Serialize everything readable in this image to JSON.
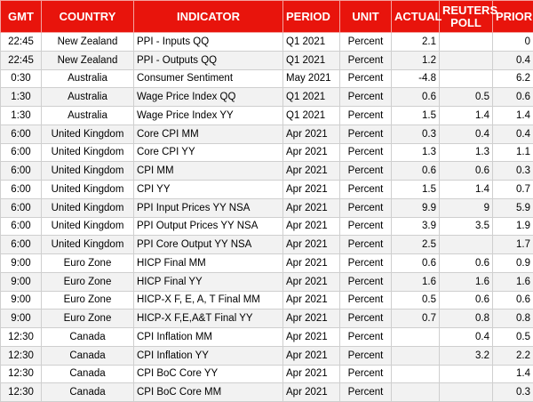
{
  "table": {
    "header": [
      "GMT",
      "COUNTRY",
      "INDICATOR",
      "PERIOD",
      "UNIT",
      "ACTUAL",
      "REUTERS POLL",
      "PRIOR"
    ],
    "rows": [
      [
        "22:45",
        "New Zealand",
        "PPI - Inputs QQ",
        "Q1 2021",
        "Percent",
        2.1,
        null,
        0
      ],
      [
        "22:45",
        "New Zealand",
        "PPI - Outputs QQ",
        "Q1 2021",
        "Percent",
        1.2,
        null,
        0.4
      ],
      [
        "0:30",
        "Australia",
        "Consumer Sentiment",
        "May 2021",
        "Percent",
        -4.8,
        null,
        6.2
      ],
      [
        "1:30",
        "Australia",
        "Wage Price Index QQ",
        "Q1 2021",
        "Percent",
        0.6,
        0.5,
        0.6
      ],
      [
        "1:30",
        "Australia",
        "Wage Price Index YY",
        "Q1 2021",
        "Percent",
        1.5,
        1.4,
        1.4
      ],
      [
        "6:00",
        "United Kingdom",
        "Core CPI MM",
        "Apr 2021",
        "Percent",
        0.3,
        0.4,
        0.4
      ],
      [
        "6:00",
        "United Kingdom",
        "Core CPI YY",
        "Apr 2021",
        "Percent",
        1.3,
        1.3,
        1.1
      ],
      [
        "6:00",
        "United Kingdom",
        "CPI MM",
        "Apr 2021",
        "Percent",
        0.6,
        0.6,
        0.3
      ],
      [
        "6:00",
        "United Kingdom",
        "CPI YY",
        "Apr 2021",
        "Percent",
        1.5,
        1.4,
        0.7
      ],
      [
        "6:00",
        "United Kingdom",
        "PPI Input Prices YY NSA",
        "Apr 2021",
        "Percent",
        9.9,
        9,
        5.9
      ],
      [
        "6:00",
        "United Kingdom",
        "PPI Output Prices YY NSA",
        "Apr 2021",
        "Percent",
        3.9,
        3.5,
        1.9
      ],
      [
        "6:00",
        "United Kingdom",
        "PPI Core Output YY NSA",
        "Apr 2021",
        "Percent",
        2.5,
        null,
        1.7
      ],
      [
        "9:00",
        "Euro Zone",
        "HICP Final MM",
        "Apr 2021",
        "Percent",
        0.6,
        0.6,
        0.9
      ],
      [
        "9:00",
        "Euro Zone",
        "HICP Final YY",
        "Apr 2021",
        "Percent",
        1.6,
        1.6,
        1.6
      ],
      [
        "9:00",
        "Euro Zone",
        "HICP-X F, E, A, T Final MM",
        "Apr 2021",
        "Percent",
        0.5,
        0.6,
        0.6
      ],
      [
        "9:00",
        "Euro Zone",
        "HICP-X F,E,A&T Final YY",
        "Apr 2021",
        "Percent",
        0.7,
        0.8,
        0.8
      ],
      [
        "12:30",
        "Canada",
        "CPI Inflation MM",
        "Apr 2021",
        "Percent",
        null,
        0.4,
        0.5
      ],
      [
        "12:30",
        "Canada",
        "CPI Inflation YY",
        "Apr 2021",
        "Percent",
        null,
        3.2,
        2.2
      ],
      [
        "12:30",
        "Canada",
        "CPI BoC Core YY",
        "Apr 2021",
        "Percent",
        null,
        null,
        1.4
      ],
      [
        "12:30",
        "Canada",
        "CPI BoC Core MM",
        "Apr 2021",
        "Percent",
        null,
        null,
        0.3
      ]
    ]
  }
}
